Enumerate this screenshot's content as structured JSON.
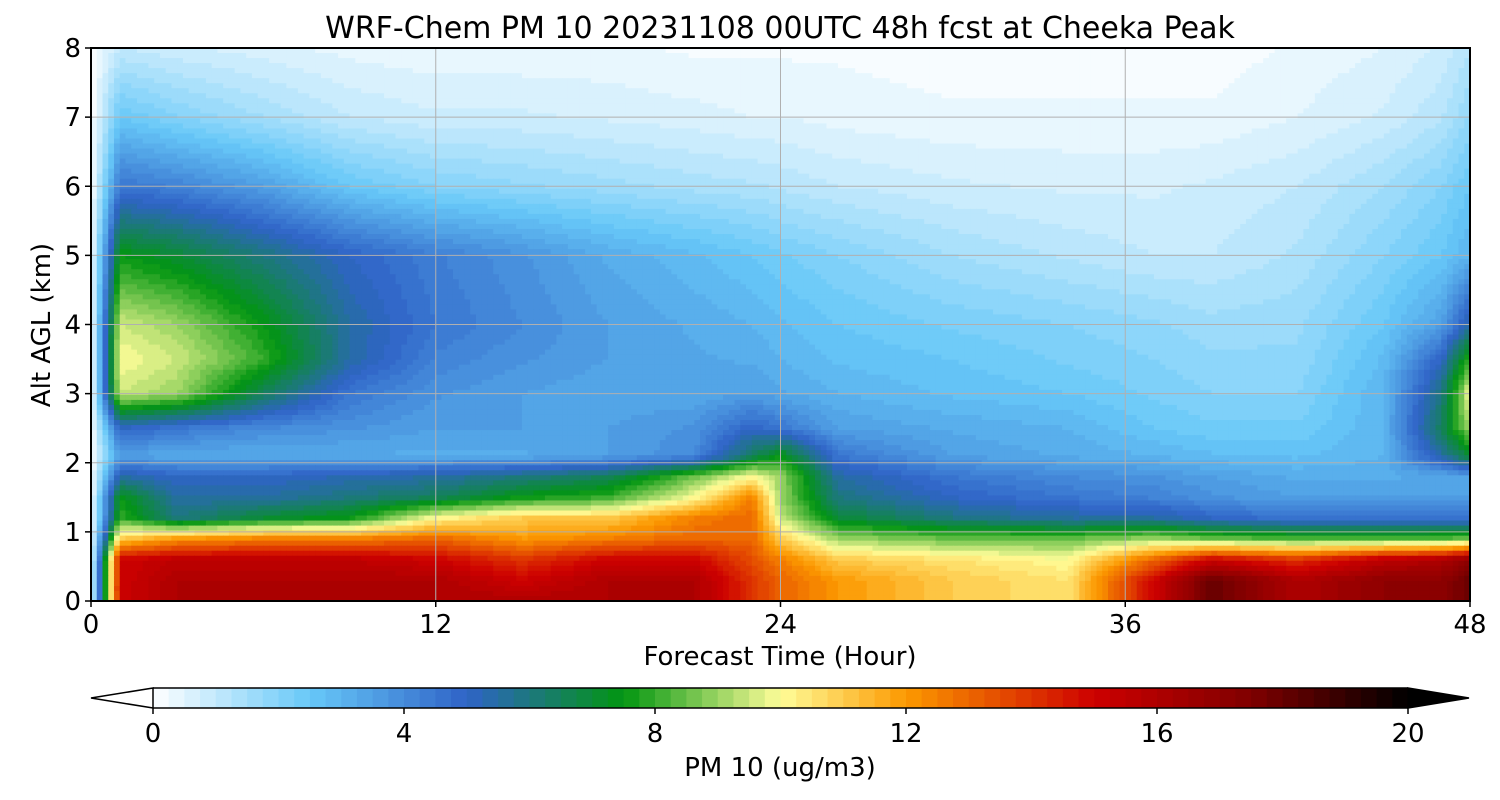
{
  "chart_data": {
    "type": "heatmap",
    "title": "WRF-Chem PM 10  20231108 00UTC 48h fcst at Cheeka Peak",
    "xlabel": "Forecast Time (Hour)",
    "ylabel": "Alt AGL (km)",
    "xlim": [
      0,
      48
    ],
    "ylim": [
      0,
      8
    ],
    "x_ticks": [
      0,
      12,
      24,
      36,
      48
    ],
    "y_ticks": [
      0,
      1,
      2,
      3,
      4,
      5,
      6,
      7,
      8
    ],
    "grid": true,
    "colorbar": {
      "label": "PM 10  (ug/m3)",
      "ticks": [
        0,
        4,
        8,
        12,
        16,
        20
      ],
      "range": [
        0,
        20
      ],
      "extend": "both",
      "orientation": "horizontal"
    },
    "x_hours": [
      0,
      1,
      3,
      6,
      9,
      12,
      15,
      18,
      21,
      23,
      24,
      26,
      30,
      34,
      37,
      39,
      42,
      45,
      47,
      48
    ],
    "y_km": [
      0,
      0.3,
      0.6,
      0.9,
      1.2,
      1.5,
      1.8,
      2.1,
      2.5,
      3.0,
      3.5,
      4.0,
      5.0,
      6.0,
      7.0,
      8.0
    ],
    "values": [
      [
        0,
        15,
        16,
        16,
        16,
        16,
        16,
        16,
        16,
        14,
        13,
        12,
        11,
        10.5,
        15,
        18,
        16,
        17,
        17,
        18
      ],
      [
        0,
        15,
        16,
        16,
        16,
        16,
        15,
        16,
        16,
        14,
        13,
        12,
        11,
        10.5,
        15,
        18,
        16,
        17,
        17,
        18
      ],
      [
        0,
        15,
        15.5,
        15.5,
        15.5,
        15,
        14,
        15,
        15,
        13.5,
        12.5,
        11,
        10.5,
        10,
        13,
        15,
        14,
        15.5,
        16,
        17
      ],
      [
        0,
        11,
        12,
        12.5,
        12.5,
        13,
        12,
        12.5,
        13,
        13,
        11,
        9,
        8.5,
        8.5,
        9,
        8.5,
        8.2,
        8.2,
        8.3,
        8.5
      ],
      [
        0,
        8,
        6,
        7,
        7.5,
        10,
        11,
        11,
        12.5,
        13,
        9.5,
        7,
        6,
        5.5,
        5.5,
        5,
        4.5,
        4.5,
        4.5,
        4.5
      ],
      [
        0,
        7.5,
        5.5,
        5.5,
        6,
        6.5,
        7.5,
        8,
        10,
        12.5,
        9,
        6,
        5,
        4.5,
        4.2,
        3.8,
        3.5,
        3.5,
        3.5,
        3.5
      ],
      [
        0,
        5.5,
        5,
        5,
        5.3,
        5.5,
        6,
        6.5,
        8.5,
        10,
        9,
        5.5,
        4.5,
        4,
        3.8,
        3.5,
        3.2,
        3.2,
        3.3,
        3.5
      ],
      [
        0,
        3.5,
        3.2,
        3.2,
        3.2,
        3.2,
        3.2,
        3.5,
        4,
        6.5,
        7.5,
        4.5,
        3.5,
        3.2,
        3,
        2.8,
        2.7,
        3,
        5.5,
        7
      ],
      [
        0,
        5,
        4.5,
        4,
        3.8,
        3.5,
        3.5,
        3.5,
        3.8,
        5,
        4.5,
        3.5,
        3.2,
        3,
        2.5,
        2.3,
        2.3,
        3,
        6.5,
        9
      ],
      [
        0,
        9.5,
        9,
        6.5,
        4.5,
        3.8,
        3.5,
        3.3,
        3.3,
        3.5,
        3.3,
        3,
        2.7,
        2.5,
        2.2,
        2,
        2,
        3,
        6,
        10
      ],
      [
        0,
        10,
        9.5,
        8,
        5.5,
        4.2,
        3.8,
        3.5,
        3.3,
        3.2,
        3,
        2.7,
        2.5,
        2.2,
        2,
        1.8,
        1.8,
        2.8,
        5,
        8
      ],
      [
        0,
        9.5,
        9,
        7.5,
        5.5,
        4.5,
        4,
        3.5,
        3.2,
        3,
        2.8,
        2.5,
        2.2,
        2,
        1.8,
        1.6,
        1.7,
        2.5,
        3.5,
        5.5
      ],
      [
        0,
        7.5,
        7,
        6,
        5,
        4.3,
        3.8,
        3.2,
        2.8,
        2.5,
        2.3,
        2,
        1.5,
        1.2,
        1,
        1,
        1.3,
        2,
        2.5,
        3
      ],
      [
        0,
        4.5,
        4.2,
        3.5,
        2.5,
        2,
        1.8,
        1.6,
        1.4,
        1.3,
        1.2,
        1,
        0.8,
        0.7,
        0.7,
        0.8,
        1,
        1.5,
        2,
        2.5
      ],
      [
        0,
        2.5,
        2,
        1.5,
        1,
        0.8,
        0.8,
        0.7,
        0.6,
        0.5,
        0.5,
        0.4,
        0.3,
        0.3,
        0.3,
        0.3,
        0.5,
        0.8,
        1.2,
        1.8
      ],
      [
        0,
        1,
        0.8,
        0.6,
        0.4,
        0.3,
        0.3,
        0.3,
        0.2,
        0.2,
        0.2,
        0.2,
        0.1,
        0.1,
        0.1,
        0.1,
        0.3,
        0.5,
        0.8,
        1.2
      ]
    ],
    "colormap_stops": [
      {
        "v": 0,
        "c": "#ffffff"
      },
      {
        "v": 2.5,
        "c": "#67c8f8"
      },
      {
        "v": 5,
        "c": "#2f63c7"
      },
      {
        "v": 7.5,
        "c": "#029611"
      },
      {
        "v": 10,
        "c": "#fffd99"
      },
      {
        "v": 12,
        "c": "#fc9900"
      },
      {
        "v": 15,
        "c": "#cd0000"
      },
      {
        "v": 17.5,
        "c": "#7f0000"
      },
      {
        "v": 20,
        "c": "#000000"
      }
    ]
  }
}
